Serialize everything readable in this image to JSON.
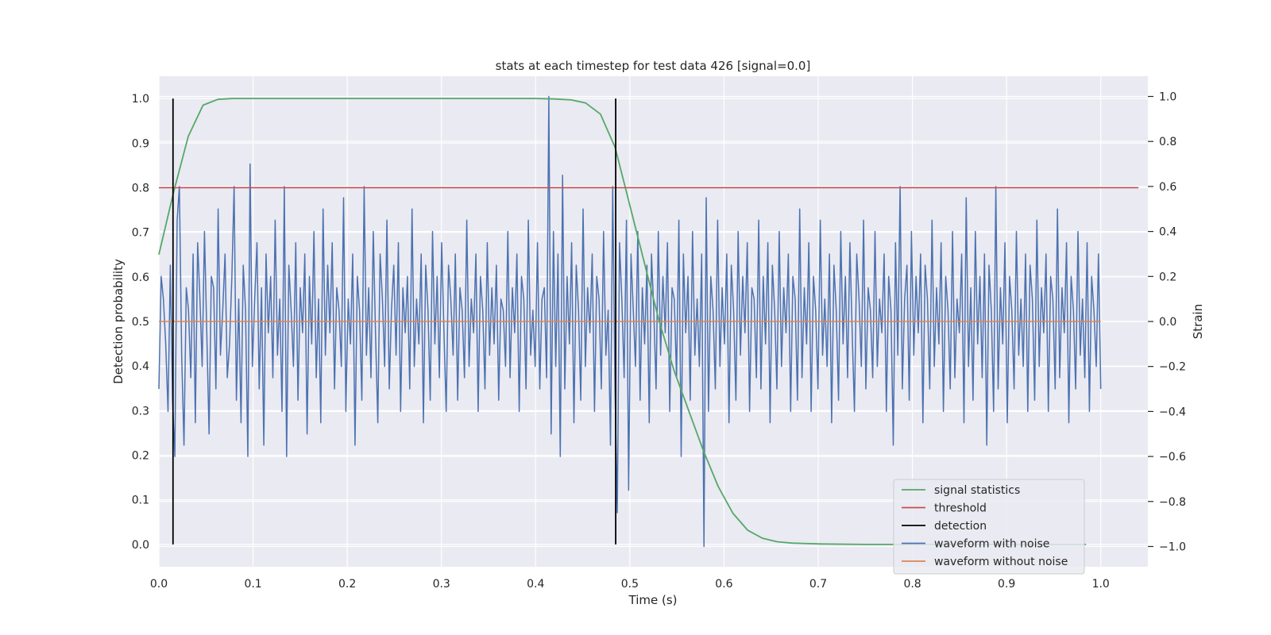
{
  "chart_data": {
    "type": "line",
    "title": "stats at each timestep for test data 426 [signal=0.0]",
    "xlabel": "Time (s)",
    "ylabel": "Detection probability",
    "y2label": "Strain",
    "xlim": [
      0.0,
      1.05
    ],
    "ylim": [
      -0.05,
      1.05
    ],
    "y2lim": [
      -1.09,
      1.09
    ],
    "grid": true,
    "legend_position": "lower-right",
    "x_ticks": [
      "0.0",
      "0.1",
      "0.2",
      "0.3",
      "0.4",
      "0.5",
      "0.6",
      "0.7",
      "0.8",
      "0.9",
      "1.0"
    ],
    "y_ticks": [
      "0.0",
      "0.1",
      "0.2",
      "0.3",
      "0.4",
      "0.5",
      "0.6",
      "0.7",
      "0.8",
      "0.9",
      "1.0"
    ],
    "y2_ticks": [
      "−1.0",
      "−0.8",
      "−0.6",
      "−0.4",
      "−0.2",
      "0.0",
      "0.2",
      "0.4",
      "0.6",
      "0.8",
      "1.0"
    ],
    "colors": {
      "background": "#eaeaf2",
      "grid": "#ffffff",
      "signal_statistics": "#55a868",
      "threshold": "#c44e52",
      "detection": "#000000",
      "waveform_with_noise": "#4c72b0",
      "waveform_without_noise": "#dd8452"
    },
    "series": [
      {
        "name": "signal statistics",
        "axis": "left",
        "x": [
          0.0,
          0.0156,
          0.0312,
          0.0469,
          0.0625,
          0.0781,
          0.0938,
          0.1094,
          0.125,
          0.2,
          0.3,
          0.4,
          0.42,
          0.4375,
          0.4531,
          0.4688,
          0.4844,
          0.5,
          0.5156,
          0.5312,
          0.5469,
          0.5625,
          0.5781,
          0.5938,
          0.6094,
          0.625,
          0.6406,
          0.6562,
          0.6719,
          0.6875,
          0.7031,
          0.75,
          0.85,
          0.9531,
          0.9844
        ],
        "y": [
          0.65,
          0.79,
          0.915,
          0.985,
          0.998,
          1.0,
          1.0,
          1.0,
          1.0,
          1.0,
          1.0,
          1.0,
          0.999,
          0.997,
          0.99,
          0.965,
          0.89,
          0.76,
          0.63,
          0.5,
          0.39,
          0.3,
          0.21,
          0.13,
          0.07,
          0.032,
          0.014,
          0.006,
          0.003,
          0.002,
          0.001,
          0.0,
          0.0,
          0.0,
          0.0
        ]
      },
      {
        "name": "threshold",
        "axis": "left",
        "x": [
          0.0,
          1.04
        ],
        "y": [
          0.8,
          0.8
        ]
      },
      {
        "name": "detection",
        "axis": "left",
        "type": "vlines",
        "x": [
          0.015,
          0.485
        ],
        "ymin": 0.0,
        "ymax": 1.0
      },
      {
        "name": "waveform with noise",
        "axis": "right",
        "x_start": 0.0,
        "x_end": 1.0,
        "y": [
          -0.3,
          0.2,
          0.1,
          -0.1,
          -0.4,
          0.25,
          -0.35,
          -0.6,
          0.45,
          0.6,
          -0.15,
          -0.55,
          0.15,
          0.05,
          -0.25,
          0.3,
          -0.45,
          0.35,
          0.1,
          -0.2,
          0.4,
          -0.05,
          -0.5,
          0.2,
          0.15,
          -0.3,
          0.5,
          -0.15,
          0.05,
          0.3,
          -0.25,
          -0.1,
          0.2,
          0.6,
          -0.35,
          0.1,
          -0.45,
          0.25,
          0.05,
          -0.6,
          0.7,
          -0.2,
          0.1,
          0.35,
          -0.3,
          0.15,
          -0.55,
          0.3,
          -0.05,
          0.2,
          -0.25,
          0.45,
          -0.15,
          0.1,
          -0.4,
          0.6,
          -0.6,
          0.25,
          0.05,
          -0.2,
          0.35,
          -0.35,
          0.15,
          -0.05,
          0.3,
          -0.5,
          0.2,
          -0.1,
          0.4,
          -0.25,
          0.1,
          -0.45,
          0.5,
          -0.15,
          0.25,
          -0.05,
          0.35,
          -0.3,
          0.15,
          0.05,
          -0.2,
          0.55,
          -0.4,
          0.1,
          -0.1,
          0.3,
          -0.55,
          0.2,
          0.05,
          -0.35,
          0.6,
          -0.15,
          0.15,
          -0.25,
          0.4,
          -0.05,
          -0.45,
          0.3,
          0.1,
          -0.2,
          0.45,
          -0.3,
          0.05,
          0.25,
          -0.15,
          0.35,
          -0.4,
          0.15,
          -0.05,
          0.2,
          -0.3,
          0.5,
          -0.2,
          0.1,
          -0.1,
          0.3,
          -0.45,
          0.25,
          0.05,
          -0.35,
          0.4,
          -0.1,
          0.2,
          -0.25,
          0.35,
          -0.05,
          -0.4,
          0.25,
          0.1,
          -0.15,
          0.3,
          -0.35,
          0.15,
          0.05,
          -0.25,
          0.45,
          -0.2,
          0.1,
          -0.05,
          0.3,
          -0.4,
          0.2,
          0.05,
          -0.3,
          0.35,
          -0.15,
          0.15,
          -0.1,
          0.25,
          -0.35,
          0.1,
          0.05,
          -0.2,
          0.4,
          -0.25,
          0.15,
          -0.05,
          0.3,
          -0.4,
          0.2,
          0.1,
          -0.3,
          0.45,
          -0.15,
          0.05,
          -0.2,
          0.35,
          -0.3,
          0.1,
          0.15,
          -0.25,
          1.0,
          -0.5,
          0.4,
          -0.2,
          0.3,
          -0.6,
          0.65,
          -0.3,
          0.2,
          -0.1,
          0.35,
          -0.45,
          0.25,
          0.05,
          -0.35,
          0.5,
          -0.2,
          0.15,
          -0.05,
          0.3,
          -0.4,
          0.2,
          0.1,
          -0.3,
          0.4,
          -0.15,
          0.05,
          -0.55,
          0.6,
          -0.3,
          -0.85,
          0.35,
          0.1,
          -0.25,
          0.45,
          -0.75,
          0.3,
          0.05,
          -0.2,
          0.4,
          -0.35,
          0.15,
          -0.1,
          0.25,
          -0.45,
          0.3,
          0.05,
          -0.3,
          0.4,
          -0.15,
          0.2,
          -0.05,
          0.35,
          -0.4,
          0.15,
          0.1,
          -0.25,
          0.45,
          -0.6,
          0.3,
          -0.05,
          0.2,
          -0.35,
          0.4,
          -0.15,
          0.1,
          -0.2,
          0.3,
          -1.0,
          0.55,
          -0.4,
          0.2,
          0.05,
          -0.3,
          0.45,
          -0.2,
          0.15,
          -0.1,
          0.3,
          -0.45,
          0.25,
          0.05,
          -0.35,
          0.4,
          -0.15,
          0.2,
          -0.05,
          0.35,
          -0.4,
          0.15,
          0.1,
          -0.25,
          0.45,
          -0.3,
          0.2,
          -0.1,
          0.35,
          -0.45,
          0.25,
          0.05,
          -0.3,
          0.4,
          -0.2,
          0.15,
          -0.05,
          0.3,
          -0.4,
          0.2,
          0.1,
          -0.35,
          0.5,
          -0.25,
          0.15,
          -0.1,
          0.35,
          -0.4,
          0.2,
          0.05,
          -0.3,
          0.45,
          -0.15,
          0.1,
          -0.2,
          0.3,
          -0.45,
          0.25,
          0.05,
          -0.35,
          0.4,
          -0.1,
          0.2,
          -0.25,
          0.35,
          -0.05,
          -0.4,
          0.3,
          0.1,
          -0.2,
          0.45,
          -0.3,
          0.15,
          0.05,
          -0.25,
          0.4,
          -0.2,
          0.1,
          -0.05,
          0.3,
          -0.4,
          0.2,
          0.05,
          -0.55,
          0.35,
          -0.15,
          0.6,
          -0.3,
          0.1,
          0.25,
          -0.35,
          0.4,
          -0.15,
          0.2,
          -0.05,
          0.3,
          -0.45,
          0.25,
          0.1,
          -0.3,
          0.45,
          -0.2,
          0.15,
          -0.1,
          0.35,
          -0.4,
          0.2,
          0.05,
          -0.3,
          0.4,
          -0.25,
          0.1,
          -0.05,
          0.3,
          -0.45,
          0.55,
          -0.2,
          0.15,
          -0.35,
          0.4,
          -0.1,
          0.2,
          -0.25,
          0.3,
          -0.55,
          0.25,
          0.05,
          -0.4,
          0.6,
          -0.3,
          0.15,
          -0.1,
          0.35,
          -0.45,
          0.2,
          0.05,
          -0.3,
          0.4,
          -0.15,
          0.1,
          -0.2,
          0.3,
          -0.4,
          0.25,
          0.1,
          -0.35,
          0.45,
          -0.2,
          0.15,
          -0.05,
          0.3,
          -0.4,
          0.2,
          0.1,
          -0.3,
          0.5,
          -0.25,
          0.15,
          -0.05,
          0.35,
          -0.45,
          0.2,
          0.05,
          -0.3,
          0.4,
          -0.15,
          0.1,
          -0.25,
          0.35,
          -0.4,
          0.2,
          0.05,
          -0.2,
          0.3,
          -0.3
        ]
      },
      {
        "name": "waveform without noise",
        "axis": "right",
        "x": [
          0.0,
          1.0
        ],
        "y": [
          0.0,
          0.0
        ]
      }
    ]
  }
}
